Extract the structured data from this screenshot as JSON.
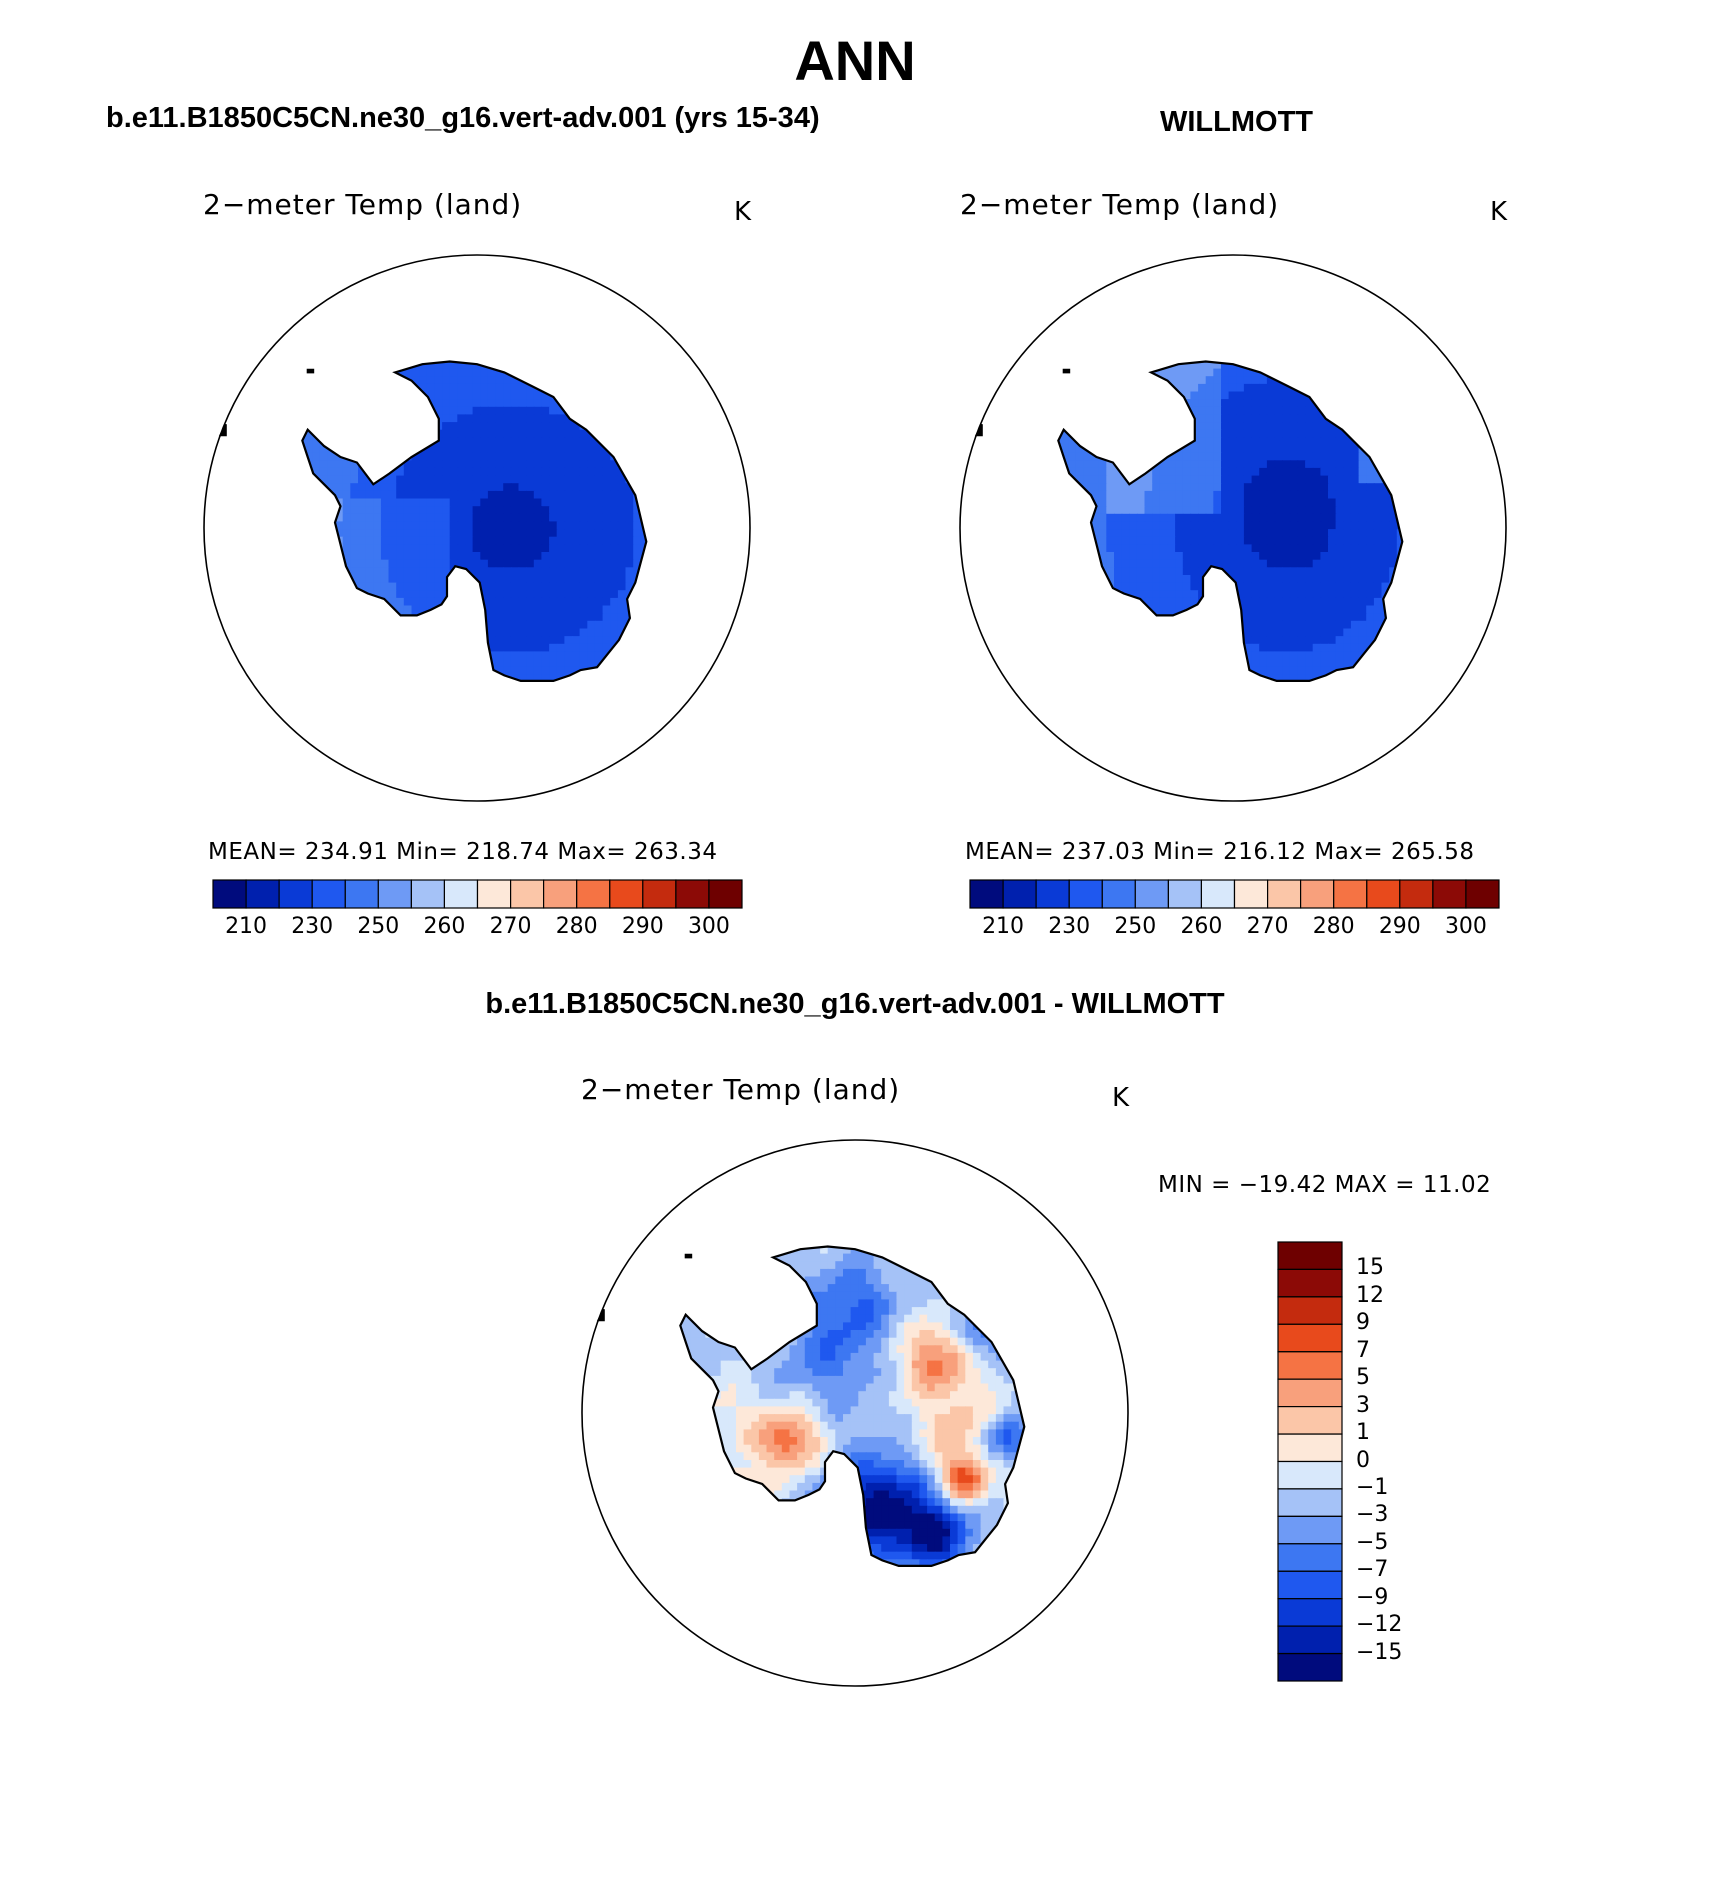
{
  "figure": {
    "title": "ANN",
    "panels": [
      {
        "heading": "b.e11.B1850C5CN.ne30_g16.vert-adv.001 (yrs 15-34)",
        "plot_title": "2−meter Temp (land)",
        "units": "K",
        "stats": "MEAN= 234.91   Min= 218.74   Max= 263.34",
        "colorbar_ticks": [
          "210",
          "230",
          "250",
          "260",
          "270",
          "280",
          "290",
          "300"
        ]
      },
      {
        "heading": "WILLMOTT",
        "plot_title": "2−meter Temp (land)",
        "units": "K",
        "stats": "MEAN= 237.03   Min= 216.12   Max= 265.58",
        "colorbar_ticks": [
          "210",
          "230",
          "250",
          "260",
          "270",
          "280",
          "290",
          "300"
        ]
      },
      {
        "heading": "b.e11.B1850C5CN.ne30_g16.vert-adv.001 - WILLMOTT",
        "plot_title": "2−meter Temp (land)",
        "units": "K",
        "stats": "MIN = −19.42 MAX =   11.02",
        "colorbar_ticks": [
          "15",
          "12",
          "9",
          "7",
          "5",
          "3",
          "1",
          "0",
          "−1",
          "−3",
          "−5",
          "−7",
          "−9",
          "−12",
          "−15"
        ]
      }
    ]
  },
  "colors": {
    "scale": [
      "#000b7d",
      "#0020ae",
      "#0a3ad6",
      "#1f58ef",
      "#3d77f2",
      "#6e9af5",
      "#a5c2f7",
      "#d8e8fb",
      "#fde8d9",
      "#fbc6a8",
      "#f8a07c",
      "#f57344",
      "#e84a1c",
      "#c42b0e",
      "#8c0a06",
      "#6e0000"
    ]
  },
  "chart_data": [
    {
      "type": "heatmap",
      "title": "2−meter Temp (land)",
      "units": "K",
      "region": "Antarctica (south polar stereographic)",
      "mean": 234.91,
      "min": 218.74,
      "max": 263.34,
      "levels": [
        210,
        230,
        250,
        260,
        270,
        280,
        290,
        300
      ]
    },
    {
      "type": "heatmap",
      "title": "2−meter Temp (land)",
      "units": "K",
      "region": "Antarctica (south polar stereographic)",
      "mean": 237.03,
      "min": 216.12,
      "max": 265.58,
      "levels": [
        210,
        230,
        250,
        260,
        270,
        280,
        290,
        300
      ]
    },
    {
      "type": "heatmap",
      "title": "2−meter Temp (land)",
      "units": "K",
      "region": "Antarctica (south polar stereographic)",
      "min": -19.42,
      "max": 11.02,
      "levels": [
        -15,
        -12,
        -9,
        -7,
        -5,
        -3,
        -1,
        0,
        1,
        3,
        5,
        7,
        9,
        12,
        15
      ]
    }
  ]
}
